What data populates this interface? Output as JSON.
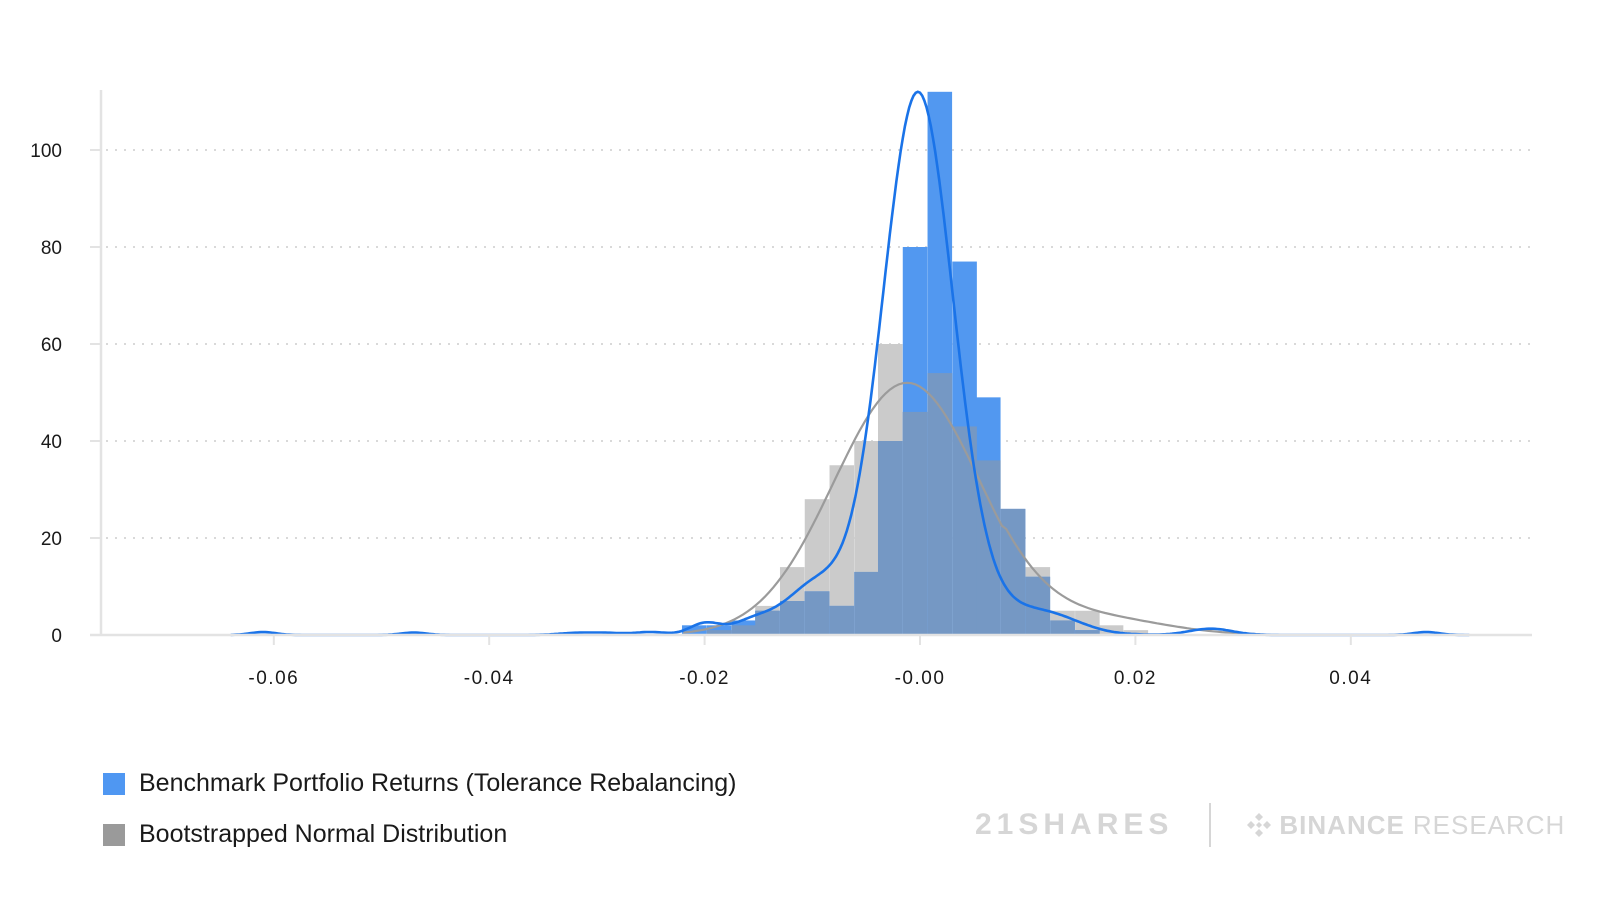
{
  "chart_data": {
    "type": "bar",
    "subtype": "histogram_with_kde",
    "title": "",
    "xlabel": "",
    "ylabel": "",
    "xlim": [
      -0.075,
      0.058
    ],
    "ylim": [
      0,
      112
    ],
    "grid": {
      "y": true,
      "style": "dotted"
    },
    "legend_position": "bottom-left",
    "x_ticks": [
      -0.06,
      -0.04,
      -0.02,
      0.0,
      0.02,
      0.04
    ],
    "x_tick_labels": [
      "-0.06",
      "-0.04",
      "-0.02",
      "-0.00",
      "0.02",
      "0.04"
    ],
    "y_ticks": [
      0,
      20,
      40,
      60,
      80,
      100
    ],
    "y_tick_labels": [
      "0",
      "20",
      "40",
      "60",
      "80",
      "100"
    ],
    "bin_width": 0.00228,
    "bin_left_edges": [
      -0.0221,
      -0.0198,
      -0.0175,
      -0.0153,
      -0.013,
      -0.0107,
      -0.0084,
      -0.0061,
      -0.0039,
      -0.0016,
      0.0007,
      0.003,
      0.0052,
      0.0075,
      0.0098,
      0.0121,
      0.0144,
      0.0166,
      0.0189
    ],
    "series": [
      {
        "name": "Benchmark Portfolio Returns (Tolerance Rebalancing)",
        "color": "#3d8bf0",
        "values": [
          2,
          2,
          3,
          5,
          7,
          9,
          6,
          13,
          40,
          80,
          112,
          77,
          49,
          26,
          12,
          3,
          1,
          0,
          0
        ],
        "kde_color": "#1a73e8",
        "kde_peak": 104
      },
      {
        "name": "Bootstrapped Normal Distribution",
        "color": "#a8a8a8",
        "values": [
          0,
          1,
          2,
          6,
          14,
          28,
          35,
          40,
          60,
          46,
          54,
          43,
          36,
          26,
          14,
          5,
          5,
          2,
          1
        ],
        "kde_color": "#999999",
        "kde_peak": 52
      }
    ],
    "blue_tail_bumps_x": [
      -0.061,
      -0.047,
      -0.032,
      -0.03,
      0.027,
      0.047
    ]
  },
  "legend": {
    "items": [
      {
        "label": "Benchmark Portfolio Returns (Tolerance Rebalancing)",
        "color": "#4f97f2"
      },
      {
        "label": "Bootstrapped Normal Distribution",
        "color": "#9a9a9a"
      }
    ]
  },
  "branding": {
    "left_logo": "21SHARES",
    "right_logo_main": "BINANCE",
    "right_logo_sub": "RESEARCH"
  }
}
